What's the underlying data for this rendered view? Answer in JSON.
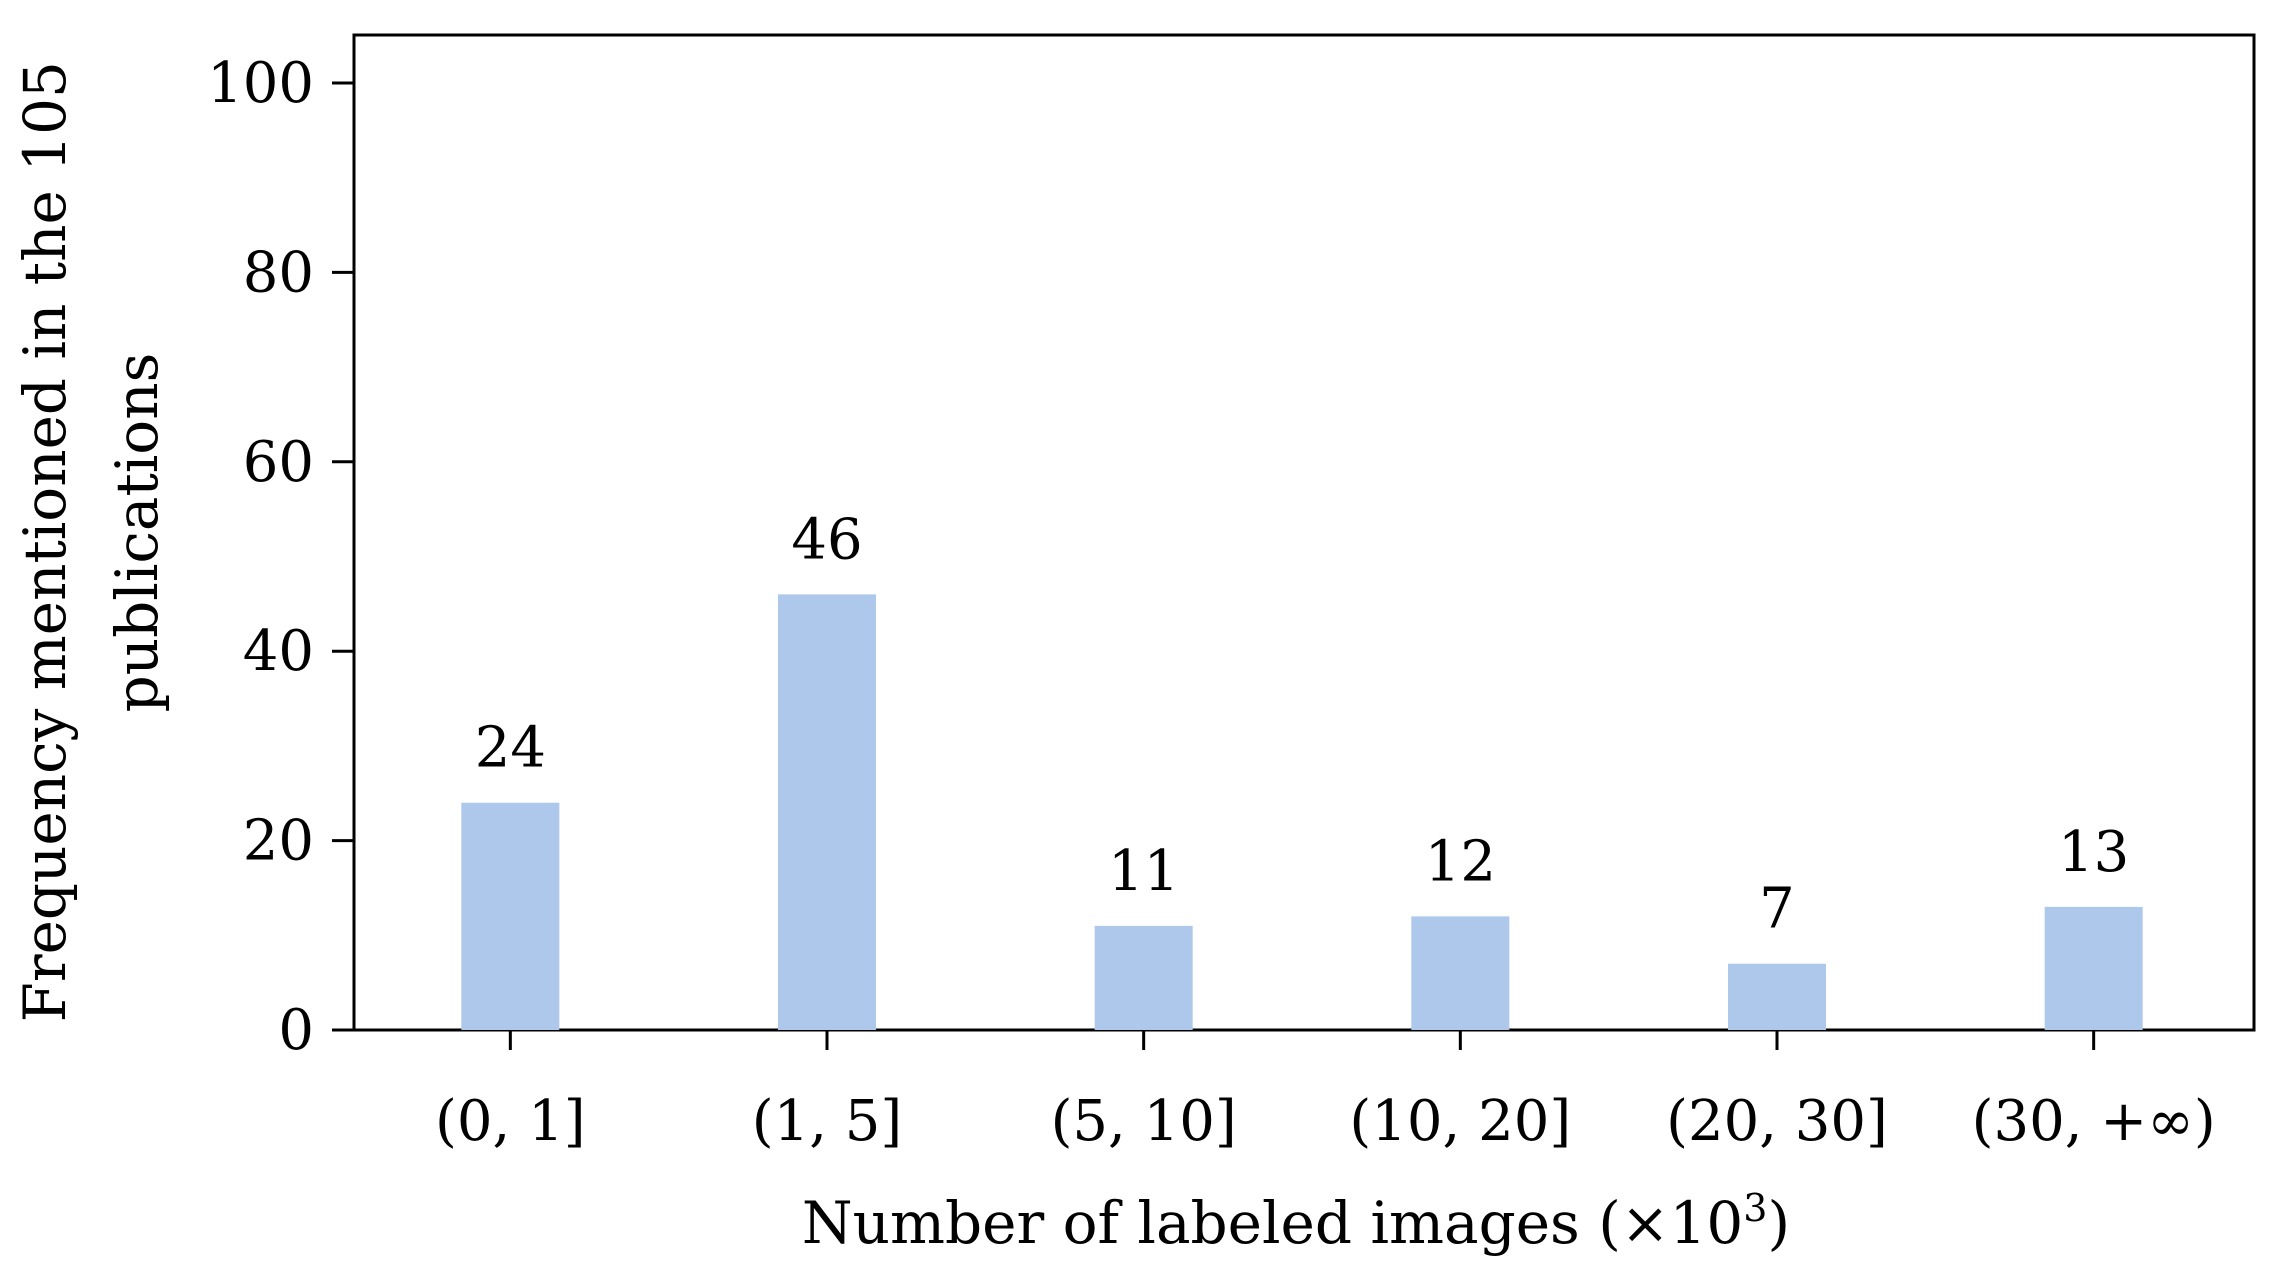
{
  "chart_data": {
    "type": "bar",
    "title": "",
    "xlabel": "Number of labeled images (×10",
    "xlabel_sup": "3",
    "xlabel_end": ")",
    "ylabel_lines": [
      "Frequency mentioned in the 105",
      "publications"
    ],
    "categories": [
      "(0, 1]",
      "(1, 5]",
      "(5, 10]",
      "(10, 20]",
      "(20, 30]",
      "(30, +∞)"
    ],
    "values": [
      24,
      46,
      11,
      12,
      7,
      13
    ],
    "data_labels": [
      "24",
      "46",
      "11",
      "12",
      "7",
      "13"
    ],
    "ylim": [
      0,
      100
    ],
    "yticks": [
      0,
      20,
      40,
      60,
      80,
      100
    ],
    "grid": false,
    "legend": "none",
    "bar_color": "#adc8eb"
  }
}
